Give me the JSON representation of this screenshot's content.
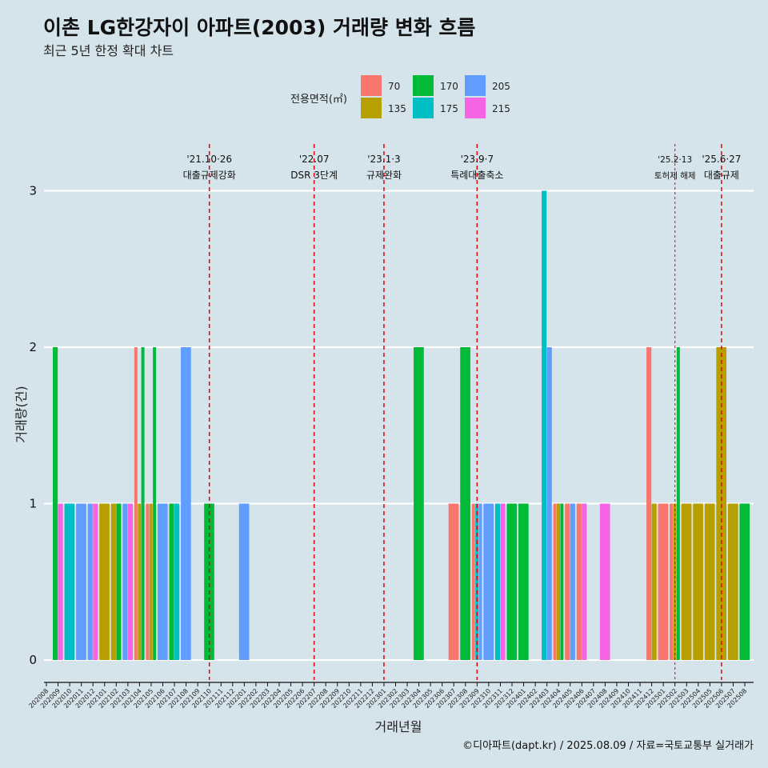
{
  "chart_data": {
    "type": "bar",
    "title": "이촌 LG한강자이 아파트(2003) 거래량 변화 흐름",
    "subtitle": "최근 5년 한정 확대 차트",
    "xlabel": "거래년월",
    "ylabel": "거래량(건)",
    "caption": "©디아파트(dapt.kr) / 2025.08.09 / 자료=국토교통부 실거래가",
    "ylim": [
      -0.15,
      3.4
    ],
    "yticks": [
      0,
      1,
      2,
      3
    ],
    "legend": {
      "title": "전용면적(㎡)",
      "entries": [
        {
          "label": "70",
          "color": "#F8766D"
        },
        {
          "label": "135",
          "color": "#B79F00"
        },
        {
          "label": "170",
          "color": "#00BA38"
        },
        {
          "label": "175",
          "color": "#00BFC4"
        },
        {
          "label": "205",
          "color": "#619CFF"
        },
        {
          "label": "215",
          "color": "#F564E3"
        }
      ]
    },
    "categories": [
      "202008",
      "202009",
      "202010",
      "202011",
      "202012",
      "202101",
      "202102",
      "202103",
      "202104",
      "202105",
      "202106",
      "202107",
      "202108",
      "202109",
      "202110",
      "202111",
      "202112",
      "202201",
      "202202",
      "202203",
      "202204",
      "202205",
      "202206",
      "202207",
      "202208",
      "202209",
      "202210",
      "202211",
      "202212",
      "202301",
      "202302",
      "202303",
      "202304",
      "202305",
      "202306",
      "202307",
      "202308",
      "202309",
      "202310",
      "202311",
      "202312",
      "202401",
      "202402",
      "202403",
      "202404",
      "202405",
      "202406",
      "202407",
      "202408",
      "202409",
      "202410",
      "202411",
      "202412",
      "202501",
      "202502",
      "202503",
      "202504",
      "202505",
      "202506",
      "202507",
      "202508"
    ],
    "series": [
      {
        "name": "70",
        "values": [
          0,
          0,
          0,
          0,
          0,
          0,
          0,
          0,
          2,
          1,
          0,
          0,
          0,
          0,
          0,
          0,
          0,
          0,
          0,
          0,
          0,
          0,
          0,
          0,
          0,
          0,
          0,
          0,
          0,
          0,
          0,
          0,
          0,
          0,
          0,
          1,
          0,
          1,
          0,
          0,
          0,
          0,
          0,
          0,
          1,
          1,
          1,
          0,
          0,
          0,
          0,
          0,
          2,
          1,
          1,
          0,
          0,
          0,
          0,
          0,
          0
        ]
      },
      {
        "name": "135",
        "values": [
          0,
          0,
          0,
          0,
          0,
          1,
          1,
          0,
          1,
          1,
          0,
          0,
          0,
          0,
          0,
          0,
          0,
          0,
          0,
          0,
          0,
          0,
          0,
          0,
          0,
          0,
          0,
          0,
          0,
          0,
          0,
          0,
          0,
          0,
          0,
          0,
          0,
          0,
          0,
          0,
          0,
          0,
          0,
          0,
          1,
          0,
          0,
          0,
          0,
          0,
          0,
          0,
          1,
          0,
          1,
          1,
          1,
          1,
          2,
          1,
          0
        ]
      },
      {
        "name": "170",
        "values": [
          0,
          2,
          0,
          0,
          0,
          0,
          1,
          0,
          2,
          2,
          0,
          1,
          0,
          0,
          1,
          0,
          0,
          0,
          0,
          0,
          0,
          0,
          0,
          0,
          0,
          0,
          0,
          0,
          0,
          0,
          0,
          0,
          2,
          0,
          0,
          0,
          2,
          0,
          0,
          0,
          1,
          1,
          0,
          0,
          1,
          0,
          0,
          0,
          0,
          0,
          0,
          0,
          0,
          0,
          2,
          0,
          0,
          0,
          0,
          0,
          1
        ]
      },
      {
        "name": "175",
        "values": [
          0,
          0,
          1,
          0,
          0,
          0,
          0,
          0,
          0,
          0,
          0,
          1,
          0,
          0,
          0,
          0,
          0,
          0,
          0,
          0,
          0,
          0,
          0,
          0,
          0,
          0,
          0,
          0,
          0,
          0,
          0,
          0,
          0,
          0,
          0,
          0,
          0,
          1,
          0,
          1,
          0,
          0,
          0,
          3,
          0,
          0,
          0,
          0,
          0,
          0,
          0,
          0,
          0,
          0,
          0,
          0,
          0,
          0,
          0,
          0,
          0
        ]
      },
      {
        "name": "205",
        "values": [
          0,
          0,
          0,
          1,
          1,
          0,
          0,
          1,
          0,
          0,
          1,
          0,
          2,
          0,
          0,
          0,
          0,
          1,
          0,
          0,
          0,
          0,
          0,
          0,
          0,
          0,
          0,
          0,
          0,
          0,
          0,
          0,
          0,
          0,
          0,
          0,
          0,
          1,
          1,
          0,
          0,
          0,
          0,
          2,
          0,
          1,
          0,
          0,
          0,
          0,
          0,
          0,
          0,
          0,
          0,
          0,
          0,
          0,
          0,
          0,
          0
        ]
      },
      {
        "name": "215",
        "values": [
          0,
          1,
          0,
          0,
          1,
          0,
          0,
          1,
          0,
          0,
          0,
          0,
          0,
          0,
          0,
          0,
          0,
          0,
          0,
          0,
          0,
          0,
          0,
          0,
          0,
          0,
          0,
          0,
          0,
          0,
          0,
          0,
          0,
          0,
          0,
          0,
          0,
          0,
          0,
          1,
          0,
          0,
          0,
          0,
          0,
          0,
          1,
          0,
          1,
          0,
          0,
          0,
          0,
          0,
          0,
          0,
          0,
          0,
          0,
          0,
          0
        ]
      }
    ],
    "annotations": [
      {
        "date": "202110",
        "line1": "'21.10·26",
        "line2": "대출규제강화",
        "style": "major"
      },
      {
        "date": "202207",
        "line1": "'22.07",
        "line2": "DSR 3단계",
        "style": "major"
      },
      {
        "date": "202301",
        "line1": "'23.1·3",
        "line2": "규제완화",
        "style": "major"
      },
      {
        "date": "202309",
        "line1": "'23.9·7",
        "line2": "특례대출축소",
        "style": "major"
      },
      {
        "date": "202502",
        "line1": "'25.2·13",
        "line2": "토허제 해제",
        "style": "minor"
      },
      {
        "date": "202506",
        "line1": "'25.6·27",
        "line2": "대출규제",
        "style": "major"
      }
    ],
    "annotation_color": "#E8000B"
  }
}
